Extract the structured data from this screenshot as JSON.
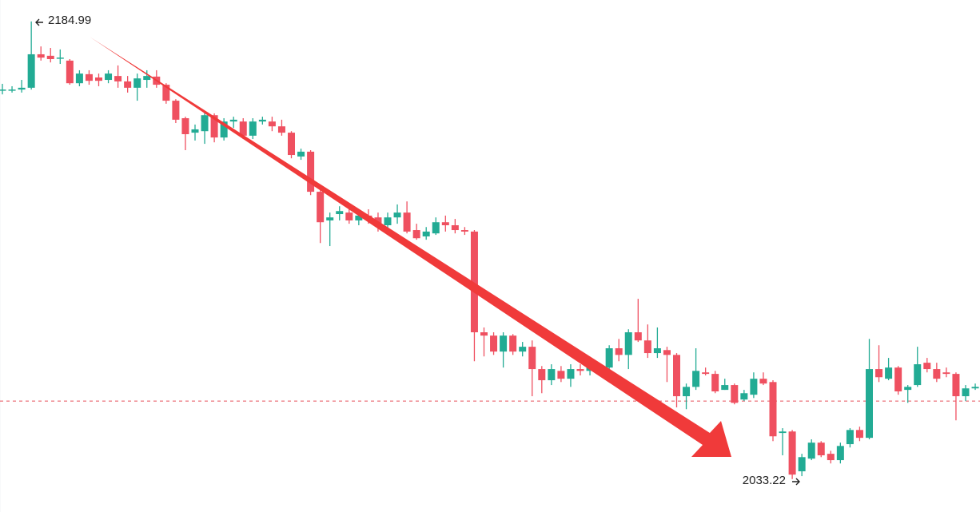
{
  "chart_data": {
    "type": "candlestick",
    "up_color": "#22ab94",
    "down_color": "#ef5060",
    "price_line": 2059.1,
    "price_line_color": "#e8505b",
    "ylim": [
      2022.3,
      2192.1
    ],
    "open": [
      2162.4,
      2162.4,
      2162.4,
      2163.0,
      2174.1,
      2173.6,
      2173.0,
      2172.0,
      2164.5,
      2167.5,
      2166.4,
      2165.6,
      2166.9,
      2165.1,
      2163.0,
      2165.6,
      2166.7,
      2164.0,
      2158.7,
      2152.9,
      2148.1,
      2148.6,
      2153.9,
      2146.5,
      2151.8,
      2151.8,
      2147.1,
      2151.8,
      2151.8,
      2150.2,
      2148.1,
      2140.2,
      2141.8,
      2128.5,
      2119.0,
      2121.1,
      2121.6,
      2119.0,
      2120.6,
      2120.0,
      2117.4,
      2120.0,
      2121.6,
      2115.8,
      2113.7,
      2114.7,
      2118.4,
      2117.4,
      2115.8,
      2115.3,
      2081.9,
      2080.8,
      2075.5,
      2080.8,
      2075.5,
      2077.1,
      2069.7,
      2066.0,
      2069.1,
      2066.5,
      2069.7,
      2069.1,
      2070.7,
      2070.2,
      2076.6,
      2074.4,
      2081.9,
      2079.2,
      2075.0,
      2076.0,
      2074.4,
      2060.7,
      2063.8,
      2068.6,
      2068.1,
      2062.8,
      2064.4,
      2059.6,
      2061.2,
      2066.5,
      2065.4,
      2048.5,
      2049.0,
      2035.8,
      2040.0,
      2045.3,
      2041.6,
      2039.5,
      2044.8,
      2049.5,
      2046.9,
      2069.7,
      2066.5,
      2070.2,
      2062.8,
      2064.4,
      2071.8,
      2069.7,
      2068.6,
      2068.1,
      2060.7,
      2063.3
    ],
    "high": [
      2164.3,
      2163.5,
      2165.6,
      2184.99,
      2176.7,
      2176.2,
      2175.7,
      2172.5,
      2168.8,
      2168.8,
      2167.7,
      2168.8,
      2170.4,
      2166.9,
      2167.7,
      2168.8,
      2168.8,
      2164.5,
      2159.2,
      2153.4,
      2150.8,
      2155.0,
      2154.5,
      2152.9,
      2153.4,
      2152.9,
      2152.9,
      2153.4,
      2153.4,
      2152.4,
      2148.6,
      2142.8,
      2142.3,
      2129.0,
      2121.6,
      2123.7,
      2122.7,
      2122.7,
      2122.7,
      2121.6,
      2121.6,
      2124.3,
      2125.3,
      2117.9,
      2116.8,
      2120.0,
      2120.6,
      2119.5,
      2116.8,
      2115.8,
      2083.5,
      2081.9,
      2081.9,
      2081.3,
      2078.7,
      2079.2,
      2070.7,
      2071.3,
      2070.7,
      2071.3,
      2071.3,
      2072.3,
      2071.8,
      2077.6,
      2079.7,
      2082.9,
      2093.0,
      2084.5,
      2083.5,
      2077.1,
      2075.0,
      2064.9,
      2076.6,
      2070.2,
      2069.1,
      2066.5,
      2064.9,
      2062.8,
      2068.6,
      2068.6,
      2066.0,
      2050.1,
      2049.5,
      2041.6,
      2046.4,
      2045.8,
      2042.6,
      2045.3,
      2050.1,
      2050.6,
      2079.7,
      2077.6,
      2073.4,
      2070.7,
      2064.4,
      2077.1,
      2073.4,
      2071.8,
      2070.2,
      2068.6,
      2064.4,
      2064.9
    ],
    "low": [
      2160.8,
      2161.4,
      2161.4,
      2162.4,
      2172.0,
      2171.4,
      2170.9,
      2164.0,
      2163.5,
      2164.0,
      2163.5,
      2164.5,
      2163.0,
      2161.4,
      2158.7,
      2163.0,
      2163.0,
      2157.7,
      2151.3,
      2142.3,
      2145.5,
      2144.4,
      2144.9,
      2145.5,
      2149.7,
      2146.0,
      2146.0,
      2150.8,
      2148.6,
      2147.1,
      2139.6,
      2139.1,
      2127.4,
      2111.5,
      2110.5,
      2119.0,
      2117.9,
      2117.4,
      2117.9,
      2115.3,
      2114.7,
      2117.9,
      2114.7,
      2112.6,
      2112.6,
      2114.2,
      2115.3,
      2114.7,
      2114.2,
      2072.3,
      2073.9,
      2074.4,
      2070.2,
      2074.4,
      2073.9,
      2060.7,
      2061.7,
      2064.4,
      2065.4,
      2063.8,
      2067.6,
      2067.6,
      2067.6,
      2069.7,
      2072.3,
      2069.7,
      2078.7,
      2073.4,
      2073.4,
      2065.4,
      2057.0,
      2056.4,
      2062.8,
      2067.6,
      2061.7,
      2062.8,
      2058.0,
      2059.1,
      2060.1,
      2064.4,
      2045.8,
      2041.1,
      2033.22,
      2034.2,
      2039.5,
      2040.5,
      2038.4,
      2038.4,
      2043.7,
      2045.8,
      2046.4,
      2065.4,
      2066.0,
      2061.2,
      2058.5,
      2063.8,
      2068.6,
      2065.4,
      2067.0,
      2052.7,
      2059.1,
      2062.8
    ],
    "close": [
      2162.4,
      2162.4,
      2163.0,
      2174.1,
      2173.0,
      2172.5,
      2173.0,
      2164.5,
      2167.7,
      2165.3,
      2165.3,
      2167.7,
      2165.1,
      2163.0,
      2166.1,
      2166.9,
      2164.0,
      2158.7,
      2152.4,
      2147.6,
      2149.2,
      2153.9,
      2146.5,
      2151.8,
      2152.4,
      2147.1,
      2151.8,
      2152.4,
      2150.2,
      2148.1,
      2140.7,
      2141.8,
      2128.5,
      2118.4,
      2120.0,
      2122.1,
      2119.0,
      2120.6,
      2120.0,
      2117.4,
      2120.0,
      2121.6,
      2115.3,
      2113.1,
      2115.3,
      2118.4,
      2117.4,
      2115.8,
      2115.3,
      2081.9,
      2080.8,
      2075.5,
      2080.8,
      2075.5,
      2077.1,
      2069.7,
      2066.0,
      2069.7,
      2066.5,
      2069.7,
      2069.1,
      2070.7,
      2070.2,
      2076.6,
      2074.4,
      2081.9,
      2079.2,
      2075.0,
      2076.6,
      2074.4,
      2060.7,
      2063.8,
      2069.1,
      2068.1,
      2062.3,
      2064.4,
      2058.5,
      2061.7,
      2066.5,
      2064.9,
      2047.4,
      2049.0,
      2034.7,
      2040.5,
      2045.3,
      2041.1,
      2039.5,
      2044.2,
      2049.5,
      2046.9,
      2069.7,
      2067.0,
      2070.2,
      2062.3,
      2063.8,
      2071.3,
      2069.7,
      2066.5,
      2068.1,
      2060.7,
      2063.3,
      2063.8
    ]
  }
}
